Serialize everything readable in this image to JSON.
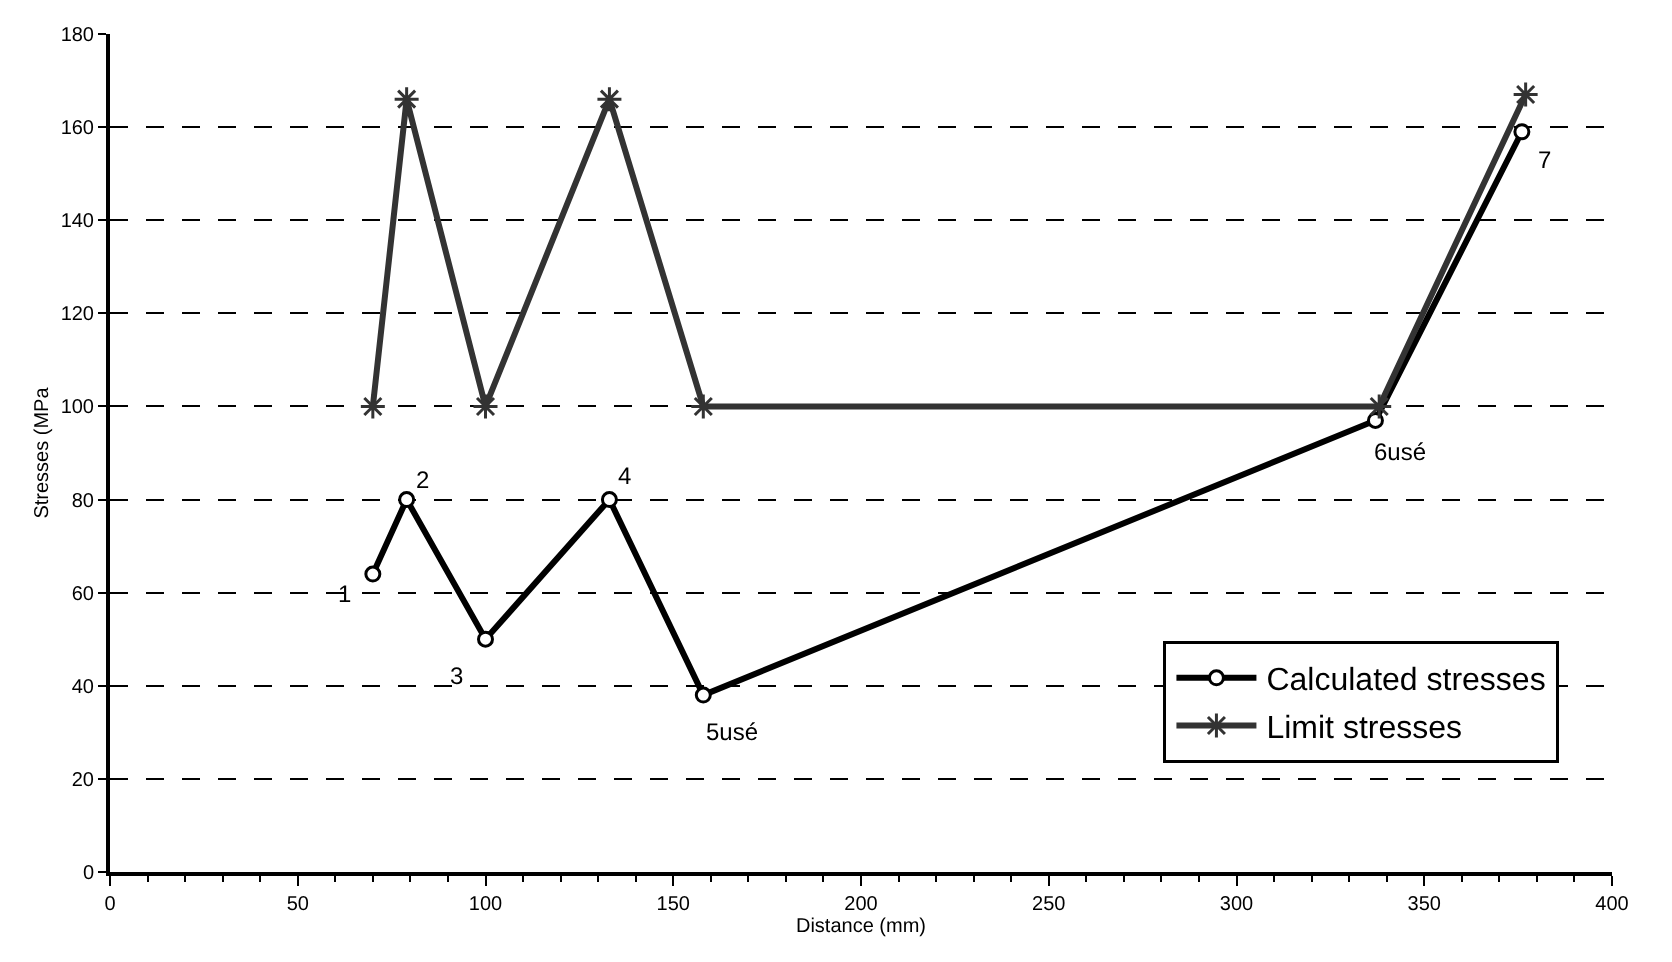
{
  "chart_data": {
    "type": "line",
    "xlabel": "Distance (mm)",
    "ylabel": "Stresses (MPa",
    "xlim": [
      0,
      400
    ],
    "xticks": [
      0,
      50,
      100,
      150,
      200,
      250,
      300,
      350,
      400
    ],
    "ylim": [
      0,
      180
    ],
    "yticks": [
      0,
      20,
      40,
      60,
      80,
      100,
      120,
      140,
      160,
      180
    ],
    "grid": "y",
    "legend": "bottom right",
    "series": [
      {
        "name": "Calculated stresses",
        "color": "#000000",
        "marker": "circle",
        "x": [
          70,
          79,
          100,
          133,
          158,
          337,
          376
        ],
        "values": [
          64,
          80,
          50,
          80,
          38,
          97,
          159
        ]
      },
      {
        "name": "Limit stresses",
        "color": "#333333",
        "marker": "cross",
        "x": [
          70,
          79,
          100,
          133,
          158,
          338,
          377
        ],
        "values": [
          100,
          166,
          100,
          166,
          100,
          100,
          167
        ]
      }
    ],
    "annotations": [
      {
        "text": "1",
        "x": 70,
        "y": 64
      },
      {
        "text": "2",
        "x": 79,
        "y": 80
      },
      {
        "text": "3",
        "x": 100,
        "y": 50
      },
      {
        "text": "4",
        "x": 133,
        "y": 80
      },
      {
        "text": "5usé",
        "x": 158,
        "y": 38
      },
      {
        "text": "6usé",
        "x": 337,
        "y": 97
      },
      {
        "text": "7",
        "x": 376,
        "y": 159
      }
    ]
  }
}
